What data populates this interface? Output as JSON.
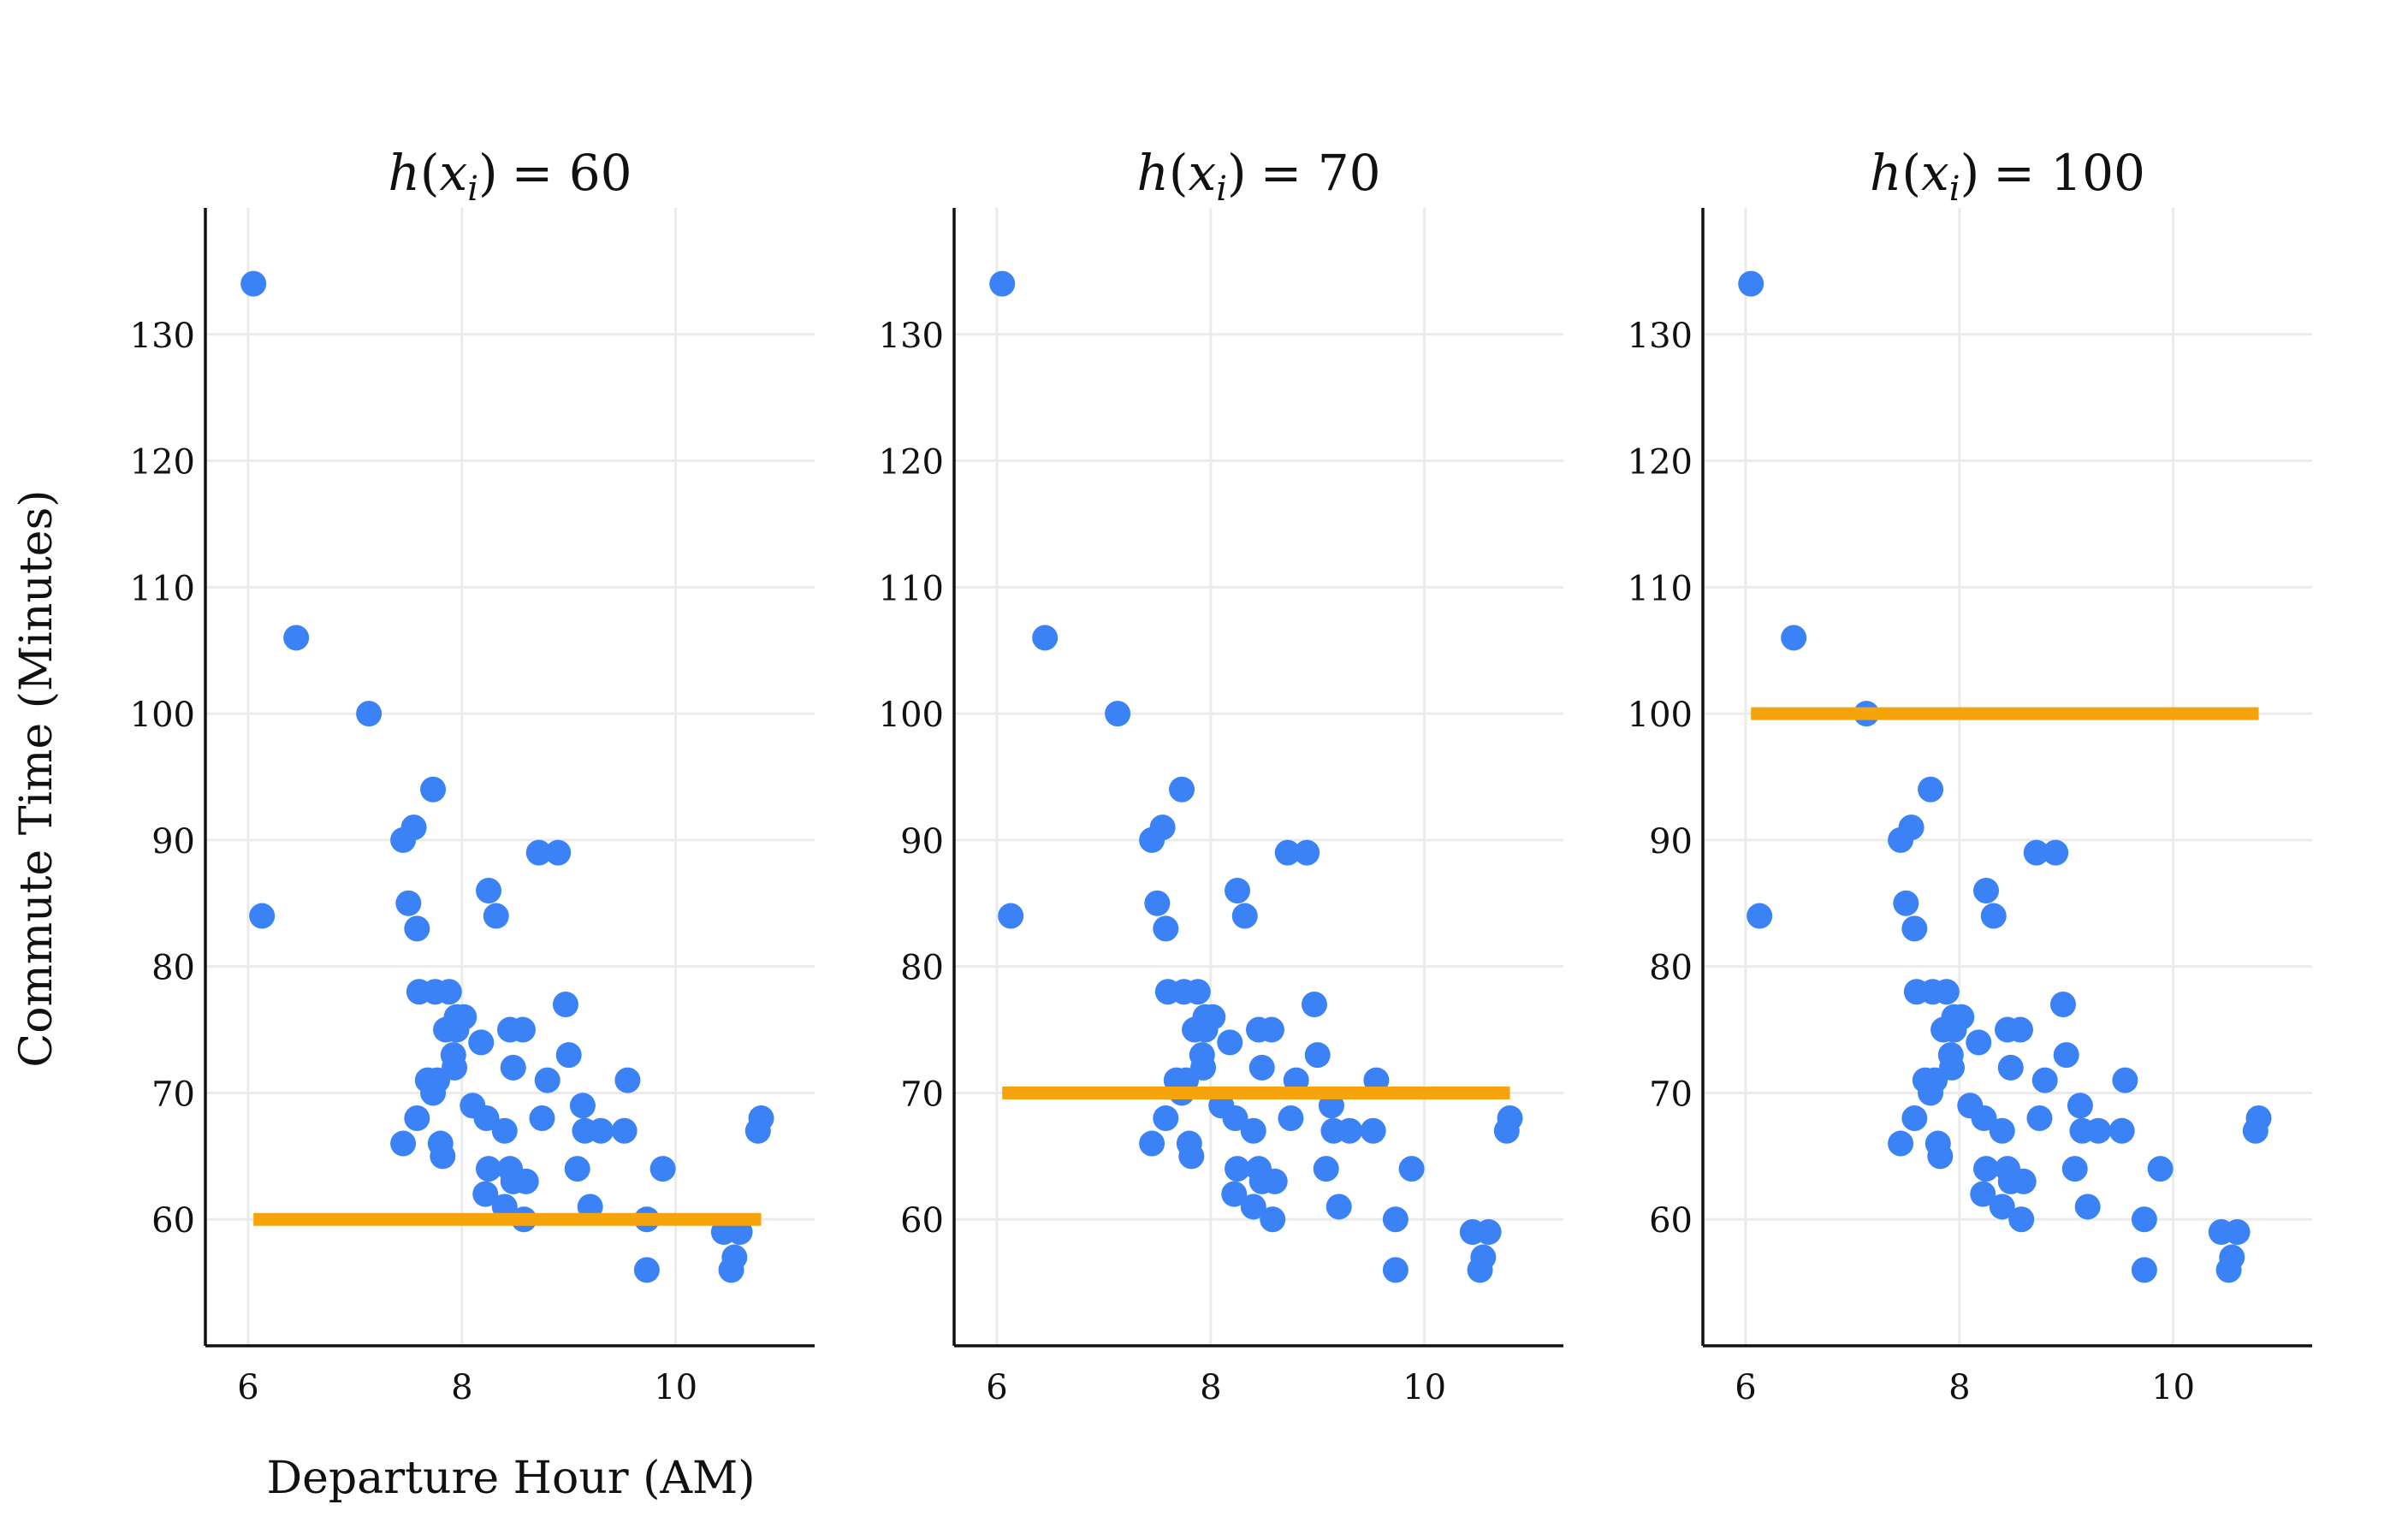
{
  "figure": {
    "ylabel": "Commute Time (Minutes)",
    "xlabel": "Departure Hour (AM)"
  },
  "colors": {
    "points": "#3b82f6",
    "hline": "#f7a30b",
    "grid": "#ebebeb",
    "axis": "#111111"
  },
  "chart_data": [
    {
      "type": "scatter",
      "title": "h(x_i) = 60",
      "title_parts": {
        "fn": "h",
        "arg": "x",
        "sub": "i",
        "eq": "= 60"
      },
      "constant_prediction": 60,
      "xlabel": "Departure Hour (AM)",
      "ylabel": "Commute Time (Minutes)",
      "xlim": [
        5.6,
        11.3
      ],
      "ylim": [
        50,
        140
      ],
      "xticks": [
        6,
        8,
        10
      ],
      "yticks": [
        60,
        70,
        80,
        90,
        100,
        110,
        120,
        130
      ],
      "grid": true
    },
    {
      "type": "scatter",
      "title": "h(x_i) = 70",
      "title_parts": {
        "fn": "h",
        "arg": "x",
        "sub": "i",
        "eq": "= 70"
      },
      "constant_prediction": 70,
      "xlabel": "Departure Hour (AM)",
      "ylabel": "Commute Time (Minutes)",
      "xlim": [
        5.6,
        11.3
      ],
      "ylim": [
        50,
        140
      ],
      "xticks": [
        6,
        8,
        10
      ],
      "yticks": [
        60,
        70,
        80,
        90,
        100,
        110,
        120,
        130
      ],
      "grid": true
    },
    {
      "type": "scatter",
      "title": "h(x_i) = 100",
      "title_parts": {
        "fn": "h",
        "arg": "x",
        "sub": "i",
        "eq": "= 100"
      },
      "constant_prediction": 100,
      "xlabel": "Departure Hour (AM)",
      "ylabel": "Commute Time (Minutes)",
      "xlim": [
        5.6,
        11.3
      ],
      "ylim": [
        50,
        140
      ],
      "xticks": [
        6,
        8,
        10
      ],
      "yticks": [
        60,
        70,
        80,
        90,
        100,
        110,
        120,
        130
      ],
      "grid": true
    }
  ],
  "points": [
    [
      6.05,
      134
    ],
    [
      6.45,
      106
    ],
    [
      7.13,
      100
    ],
    [
      6.13,
      84
    ],
    [
      7.73,
      94
    ],
    [
      7.45,
      90
    ],
    [
      7.55,
      91
    ],
    [
      7.5,
      85
    ],
    [
      7.58,
      83
    ],
    [
      8.25,
      86
    ],
    [
      8.32,
      84
    ],
    [
      8.72,
      89
    ],
    [
      8.9,
      89
    ],
    [
      7.6,
      78
    ],
    [
      7.75,
      78
    ],
    [
      7.88,
      78
    ],
    [
      7.95,
      76
    ],
    [
      8.02,
      76
    ],
    [
      7.85,
      75
    ],
    [
      7.95,
      75
    ],
    [
      8.18,
      74
    ],
    [
      8.45,
      75
    ],
    [
      8.57,
      75
    ],
    [
      7.92,
      73
    ],
    [
      8.97,
      77
    ],
    [
      9.0,
      73
    ],
    [
      8.48,
      72
    ],
    [
      7.93,
      72
    ],
    [
      7.68,
      71
    ],
    [
      7.77,
      71
    ],
    [
      7.73,
      70
    ],
    [
      8.8,
      71
    ],
    [
      9.55,
      71
    ],
    [
      8.1,
      69
    ],
    [
      7.58,
      68
    ],
    [
      8.23,
      68
    ],
    [
      8.75,
      68
    ],
    [
      9.13,
      69
    ],
    [
      8.4,
      67
    ],
    [
      9.15,
      67
    ],
    [
      9.3,
      67
    ],
    [
      9.52,
      67
    ],
    [
      7.45,
      66
    ],
    [
      7.8,
      66
    ],
    [
      7.82,
      65
    ],
    [
      8.25,
      64
    ],
    [
      8.45,
      64
    ],
    [
      8.48,
      63
    ],
    [
      8.6,
      63
    ],
    [
      9.08,
      64
    ],
    [
      9.88,
      64
    ],
    [
      8.22,
      62
    ],
    [
      8.4,
      61
    ],
    [
      8.58,
      60
    ],
    [
      9.2,
      61
    ],
    [
      9.73,
      60
    ],
    [
      10.45,
      59
    ],
    [
      10.6,
      59
    ],
    [
      9.73,
      56
    ],
    [
      10.55,
      57
    ],
    [
      10.52,
      56
    ],
    [
      10.77,
      67
    ],
    [
      10.8,
      68
    ]
  ]
}
